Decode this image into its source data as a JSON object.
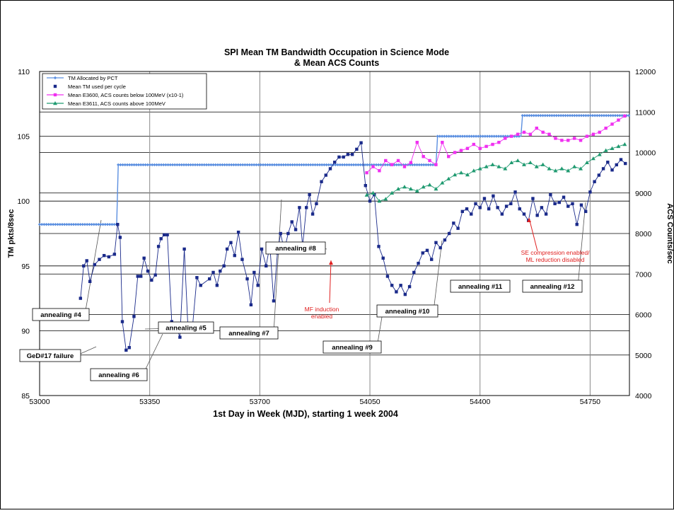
{
  "chart_data": {
    "type": "line",
    "title": "SPI Mean TM Bandwidth Occupation in Science Mode",
    "subtitle": "& Mean ACS Counts",
    "xlabel": "1st Day in Week (MJD), starting 1 week 2004",
    "ylabel": "TM pkts/8sec",
    "y2label": "ACS Counts/sec",
    "xlim": [
      53000,
      54875
    ],
    "ylim": [
      85,
      110
    ],
    "y2lim": [
      4000,
      12000
    ],
    "x_ticks": [
      53000,
      53350,
      53700,
      54050,
      54400,
      54750
    ],
    "y_ticks": [
      85,
      90,
      95,
      100,
      105,
      110
    ],
    "y2_ticks": [
      4000,
      5000,
      6000,
      7000,
      8000,
      9000,
      10000,
      11000,
      12000
    ],
    "grid": {
      "vertical": true,
      "horizontal": true
    },
    "legend_position": "top-left",
    "series": [
      {
        "name": "TM Allocated by PCT",
        "axis": "left",
        "color": "#5b8fe0",
        "marker": "diamond",
        "x": [
          53000,
          53245,
          53250,
          54260,
          54265,
          54530,
          54535,
          54875
        ],
        "y": [
          98.2,
          98.2,
          102.8,
          102.8,
          105.0,
          105.0,
          106.6,
          106.6
        ]
      },
      {
        "name": "Mean TM used per cycle",
        "axis": "left",
        "color": "#1a2a8a",
        "marker": "square",
        "x": [
          53130,
          53140,
          53150,
          53160,
          53175,
          53190,
          53205,
          53220,
          53238,
          53248,
          53256,
          53263,
          53275,
          53285,
          53300,
          53312,
          53322,
          53332,
          53344,
          53356,
          53368,
          53378,
          53386,
          53396,
          53406,
          53420,
          53432,
          53446,
          53460,
          53472,
          53486,
          53500,
          53512,
          53540,
          53552,
          53564,
          53574,
          53586,
          53596,
          53608,
          53620,
          53632,
          53644,
          53660,
          53672,
          53682,
          53694,
          53706,
          53720,
          53732,
          53744,
          53756,
          53766,
          53778,
          53790,
          53802,
          53814,
          53826,
          53836,
          53848,
          53858,
          53868,
          53880,
          53896,
          53910,
          53924,
          53938,
          53952,
          53966,
          53980,
          53994,
          54008,
          54022,
          54036,
          54050,
          54064,
          54078,
          54092,
          54106,
          54120,
          54134,
          54148,
          54162,
          54176,
          54190,
          54204,
          54218,
          54232,
          54246,
          54260,
          54274,
          54288,
          54302,
          54316,
          54330,
          54344,
          54358,
          54372,
          54386,
          54400,
          54414,
          54428,
          54442,
          54456,
          54470,
          54484,
          54498,
          54512,
          54526,
          54540,
          54554,
          54568,
          54582,
          54596,
          54610,
          54624,
          54638,
          54652,
          54666,
          54680,
          54694,
          54708,
          54722,
          54736,
          54750,
          54764,
          54778,
          54792,
          54806,
          54820,
          54834,
          54848,
          54862
        ],
        "y": [
          92.5,
          95.0,
          95.4,
          93.8,
          95.1,
          95.5,
          95.8,
          95.7,
          95.9,
          98.2,
          97.2,
          90.7,
          88.5,
          88.7,
          91.1,
          94.2,
          94.2,
          95.6,
          94.6,
          93.9,
          94.3,
          96.5,
          97.1,
          97.4,
          97.4,
          90.7,
          90.5,
          89.5,
          96.3,
          90.0,
          90.3,
          94.1,
          93.5,
          94.0,
          94.5,
          93.5,
          94.6,
          95.0,
          96.3,
          96.8,
          95.8,
          97.6,
          95.5,
          94.0,
          92.0,
          94.5,
          93.5,
          96.3,
          95.0,
          96.6,
          92.3,
          96.0,
          97.5,
          96.2,
          97.5,
          98.4,
          97.8,
          99.5,
          96.5,
          99.5,
          100.5,
          99.0,
          99.8,
          101.5,
          102.0,
          102.5,
          103.0,
          103.4,
          103.4,
          103.6,
          103.6,
          104.0,
          104.5,
          101.2,
          100.0,
          100.5,
          96.5,
          95.6,
          94.2,
          93.5,
          93.0,
          93.5,
          92.8,
          93.4,
          94.5,
          95.2,
          96.0,
          96.2,
          95.5,
          96.8,
          96.4,
          97.0,
          97.5,
          98.3,
          97.9,
          99.2,
          99.4,
          99.0,
          99.8,
          99.5,
          100.2,
          99.4,
          100.4,
          99.5,
          99.0,
          99.6,
          99.8,
          100.7,
          99.4,
          99.0,
          98.5,
          100.2,
          98.9,
          99.5,
          99.0,
          100.5,
          99.8,
          99.9,
          100.3,
          99.6,
          99.8,
          98.2,
          99.7,
          99.2,
          100.7,
          101.5,
          102.0,
          102.5,
          103.0,
          102.4,
          102.8,
          103.2,
          102.9
        ],
        "note": "values read approximately from the plotted points"
      },
      {
        "name": "Mean E3600, ACS counts below 100MeV (x10-1)",
        "axis": "right",
        "color": "#f030f0",
        "marker": "square",
        "x": [
          54040,
          54060,
          54080,
          54100,
          54120,
          54140,
          54160,
          54180,
          54200,
          54220,
          54240,
          54260,
          54280,
          54300,
          54320,
          54340,
          54360,
          54380,
          54400,
          54420,
          54440,
          54460,
          54480,
          54500,
          54520,
          54540,
          54560,
          54580,
          54600,
          54620,
          54640,
          54660,
          54680,
          54700,
          54720,
          54740,
          54760,
          54780,
          54800,
          54820,
          54840,
          54860
        ],
        "y": [
          9500,
          9650,
          9550,
          9800,
          9700,
          9800,
          9650,
          9750,
          10250,
          9900,
          9800,
          9700,
          10250,
          9900,
          10000,
          10050,
          10100,
          10200,
          10100,
          10150,
          10200,
          10250,
          10350,
          10400,
          10450,
          10500,
          10450,
          10600,
          10500,
          10450,
          10350,
          10300,
          10300,
          10350,
          10300,
          10400,
          10450,
          10500,
          10600,
          10700,
          10800,
          10900
        ],
        "note": "values read approximately from the plotted points"
      },
      {
        "name": "Mean E3611, ACS counts above 100MeV",
        "axis": "right",
        "color": "#1f9a70",
        "marker": "triangle",
        "x": [
          54040,
          54060,
          54080,
          54100,
          54120,
          54140,
          54160,
          54180,
          54200,
          54220,
          54240,
          54260,
          54280,
          54300,
          54320,
          54340,
          54360,
          54380,
          54400,
          54420,
          54440,
          54460,
          54480,
          54500,
          54520,
          54540,
          54560,
          54580,
          54600,
          54620,
          54640,
          54660,
          54680,
          54700,
          54720,
          54740,
          54760,
          54780,
          54800,
          54820,
          54840,
          54860
        ],
        "y": [
          8950,
          9000,
          8800,
          8850,
          9000,
          9100,
          9150,
          9100,
          9050,
          9150,
          9200,
          9100,
          9250,
          9350,
          9450,
          9500,
          9450,
          9550,
          9600,
          9650,
          9700,
          9650,
          9600,
          9750,
          9800,
          9700,
          9750,
          9650,
          9700,
          9600,
          9550,
          9600,
          9550,
          9650,
          9600,
          9750,
          9850,
          9950,
          10050,
          10100,
          10150,
          10200
        ],
        "note": "values read approximately from the plotted points"
      }
    ],
    "annotations": [
      {
        "text": "annealing #4"
      },
      {
        "text": "GeD#17 failure"
      },
      {
        "text": "annealing #5"
      },
      {
        "text": "annealing #6"
      },
      {
        "text": "annealing #7"
      },
      {
        "text": "annealing #8"
      },
      {
        "text": "annealing #9"
      },
      {
        "text": "annealing #10"
      },
      {
        "text": "annealing #11"
      },
      {
        "text": "annealing #12"
      }
    ],
    "red_notes": [
      {
        "lines": [
          "MF induction",
          "enabled"
        ]
      },
      {
        "lines": [
          "SE compression enabled/",
          "ML reduction disabled"
        ]
      }
    ]
  }
}
